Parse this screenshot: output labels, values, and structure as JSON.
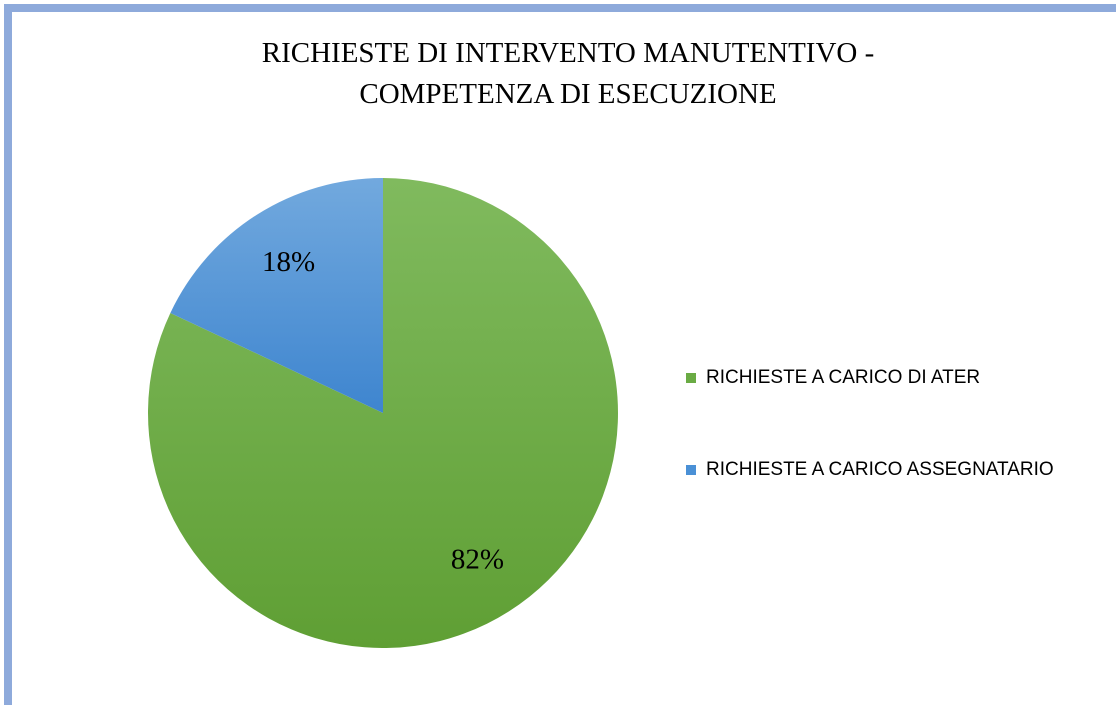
{
  "chart_data": {
    "type": "pie",
    "title": [
      "RICHIESTE DI INTERVENTO  MANUTENTIVO -",
      "COMPETENZA DI ESECUZIONE"
    ],
    "categories": [
      "RICHIESTE A CARICO DI ATER",
      "RICHIESTE A CARICO ASSEGNATARIO"
    ],
    "values": [
      82,
      18
    ],
    "value_labels": [
      "82%",
      "18%"
    ],
    "colors": [
      "#6aab44",
      "#4a90d6"
    ],
    "legend": "right"
  }
}
